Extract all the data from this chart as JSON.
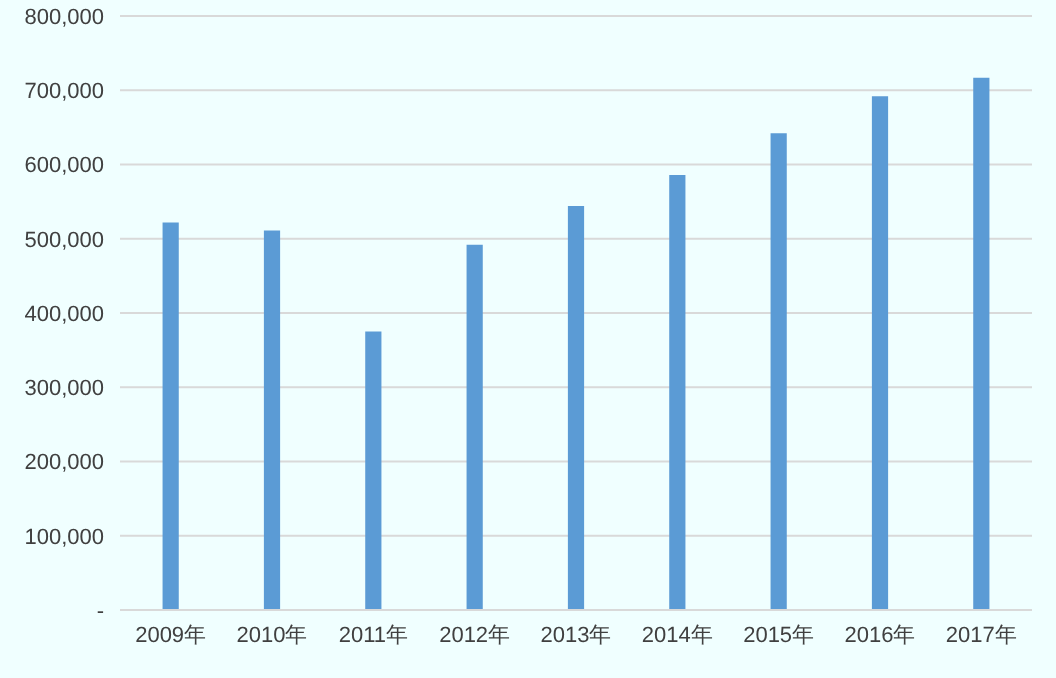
{
  "chart_data": {
    "type": "bar",
    "categories": [
      "2009年",
      "2010年",
      "2011年",
      "2012年",
      "2013年",
      "2014年",
      "2015年",
      "2016年",
      "2017年"
    ],
    "values": [
      522000,
      511000,
      375000,
      492000,
      544000,
      586000,
      642000,
      692000,
      717000
    ],
    "color": "#5b9bd5",
    "ylim": [
      0,
      800000
    ],
    "yticks": [
      {
        "value": 0,
        "label": "-"
      },
      {
        "value": 100000,
        "label": "100,000"
      },
      {
        "value": 200000,
        "label": "200,000"
      },
      {
        "value": 300000,
        "label": "300,000"
      },
      {
        "value": 400000,
        "label": "400,000"
      },
      {
        "value": 500000,
        "label": "500,000"
      },
      {
        "value": 600000,
        "label": "600,000"
      },
      {
        "value": 700000,
        "label": "700,000"
      },
      {
        "value": 800000,
        "label": "800,000"
      }
    ],
    "grid": "y"
  }
}
